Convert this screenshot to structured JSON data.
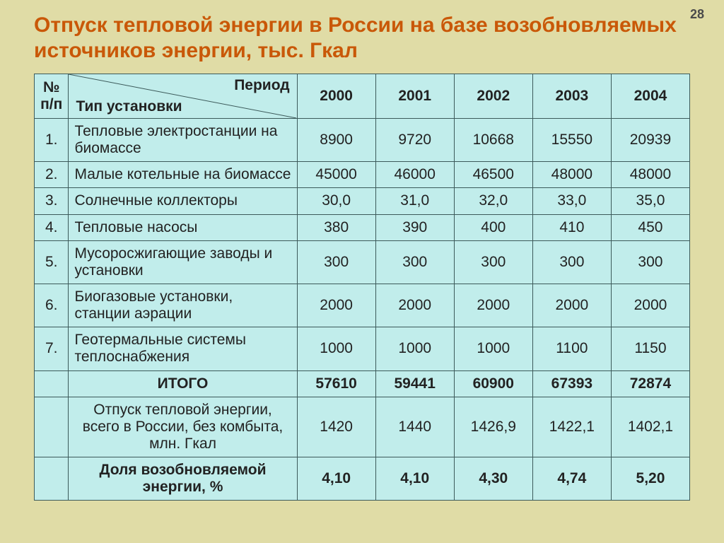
{
  "page_number": "28",
  "title": "Отпуск тепловой энергии в России на базе возобновляемых источников энергии, тыс. Гкал",
  "colors": {
    "slide_bg": "#e0dca6",
    "title_color": "#c95808",
    "cell_bg": "#c1edeb",
    "border_color": "#3c5a5a",
    "text_color": "#222222"
  },
  "table": {
    "header": {
      "idx_label": "№ п/п",
      "period_label": "Период",
      "type_label": "Тип установки",
      "years": [
        "2000",
        "2001",
        "2002",
        "2003",
        "2004"
      ]
    },
    "rows": [
      {
        "n": "1.",
        "label": "Тепловые электростанции на биомассе",
        "values": [
          "8900",
          "9720",
          "10668",
          "15550",
          "20939"
        ]
      },
      {
        "n": "2.",
        "label": "Малые котельные на биомассе",
        "values": [
          "45000",
          "46000",
          "46500",
          "48000",
          "48000"
        ]
      },
      {
        "n": "3.",
        "label": "Солнечные коллекторы",
        "values": [
          "30,0",
          "31,0",
          "32,0",
          "33,0",
          "35,0"
        ]
      },
      {
        "n": "4.",
        "label": "Тепловые насосы",
        "values": [
          "380",
          "390",
          "400",
          "410",
          "450"
        ]
      },
      {
        "n": "5.",
        "label": "Мусоросжигающие заводы и установки",
        "values": [
          "300",
          "300",
          "300",
          "300",
          "300"
        ]
      },
      {
        "n": "6.",
        "label": "Биогазовые установки, станции аэрации",
        "values": [
          "2000",
          "2000",
          "2000",
          "2000",
          "2000"
        ]
      },
      {
        "n": "7.",
        "label": "Геотермальные системы теплоснабжения",
        "values": [
          "1000",
          "1000",
          "1000",
          "1100",
          "1150"
        ]
      }
    ],
    "total": {
      "label": "ИТОГО",
      "values": [
        "57610",
        "59441",
        "60900",
        "67393",
        "72874"
      ]
    },
    "footer_rows": [
      {
        "label": "Отпуск тепловой энергии, всего в России, без комбыта, млн. Гкал",
        "bold": false,
        "values": [
          "1420",
          "1440",
          "1426,9",
          "1422,1",
          "1402,1"
        ]
      },
      {
        "label": "Доля возобновляемой энергии, %",
        "bold": true,
        "values": [
          "4,10",
          "4,10",
          "4,30",
          "4,74",
          "5,20"
        ]
      }
    ]
  }
}
